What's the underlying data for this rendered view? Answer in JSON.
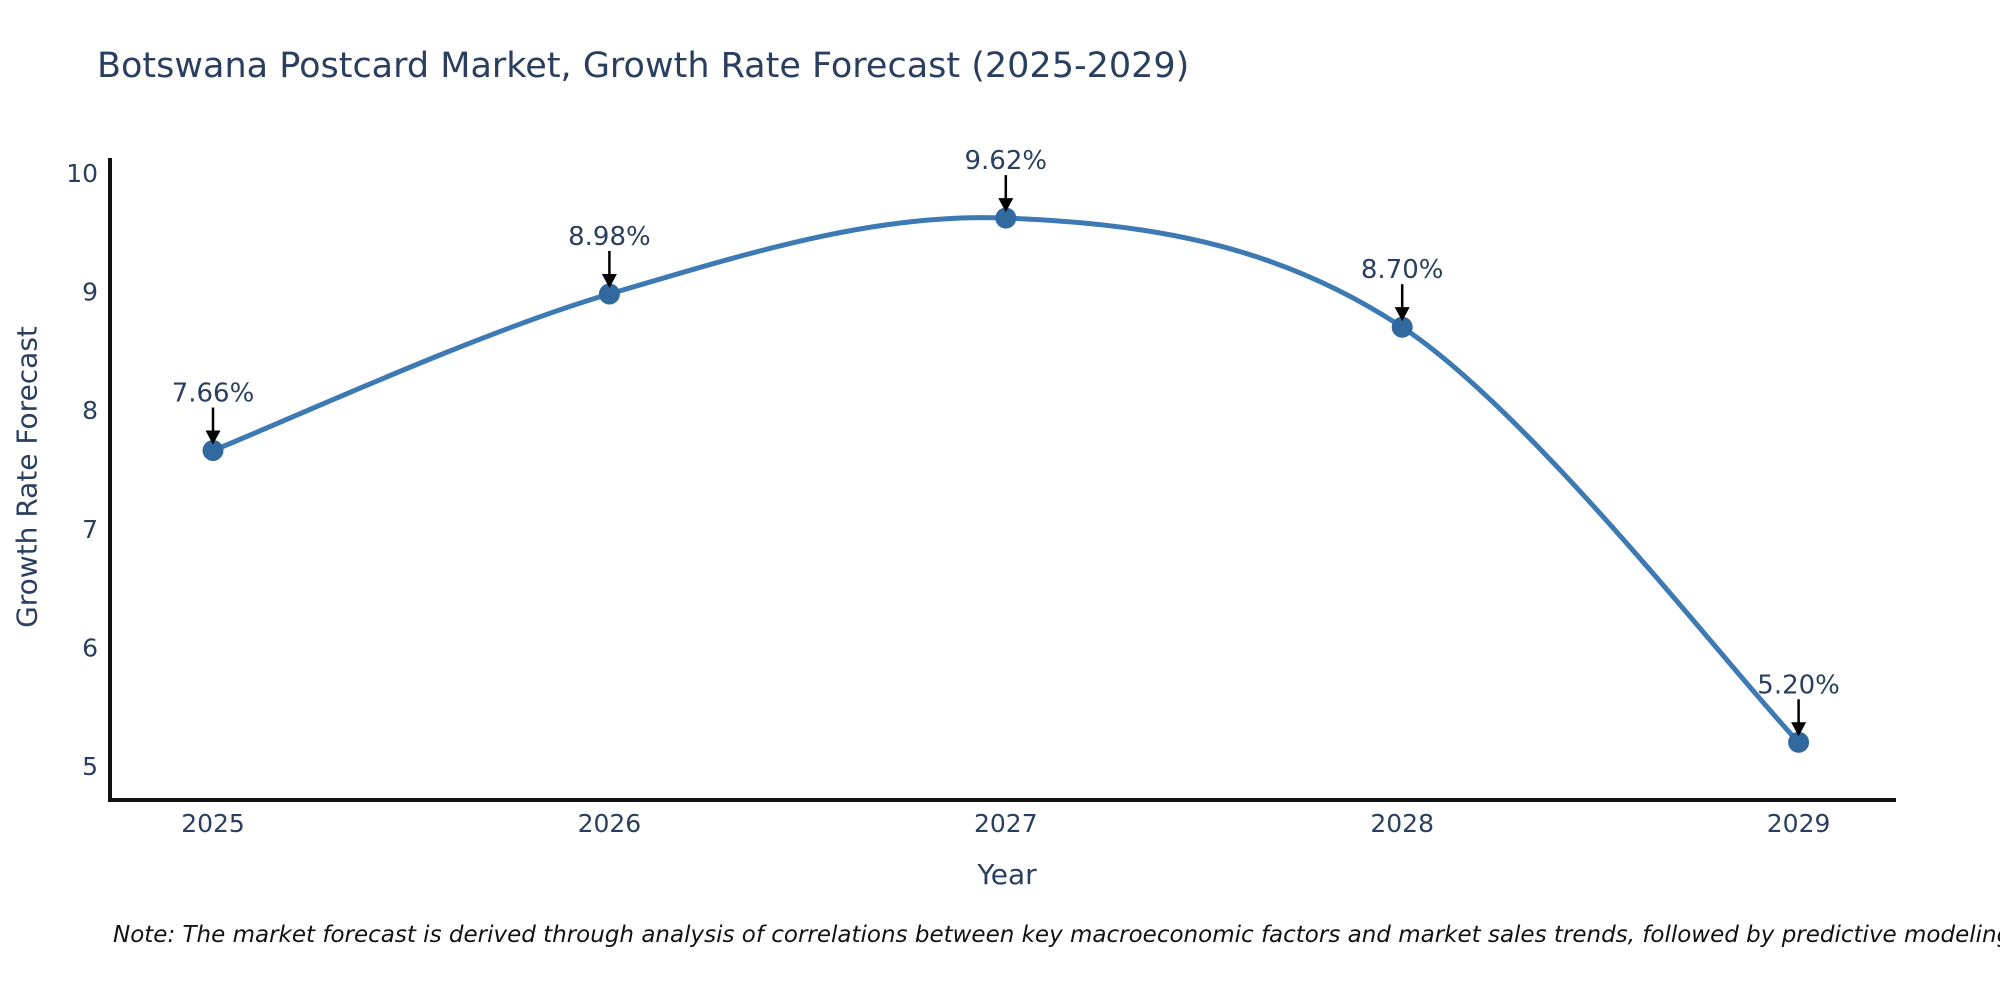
{
  "page": {
    "background": "#ffffff"
  },
  "chart_data": {
    "type": "line",
    "title": "Botswana Postcard Market, Growth Rate Forecast (2025-2029)",
    "xlabel": "Year",
    "ylabel": "Growth Rate Forecast",
    "note": "Note: The market forecast is derived through analysis of correlations between key macroeconomic factors and market sales trends, followed by predictive modeling to project future sales.",
    "x": [
      2025,
      2026,
      2027,
      2028,
      2029
    ],
    "values": [
      7.66,
      8.98,
      9.62,
      8.7,
      5.2
    ],
    "point_labels": [
      "7.66%",
      "8.98%",
      "9.62%",
      "8.70%",
      "5.20%"
    ],
    "ylim": [
      5,
      10
    ],
    "yticks": [
      5,
      6,
      7,
      8,
      9,
      10
    ],
    "line_shape": "spline",
    "grid": false,
    "legend": false,
    "colors": {
      "line": "#3d79b2",
      "marker": "#31689e",
      "axis": "#111111",
      "text": "#2a3f5f",
      "annotation_text": "#2a3f5f",
      "annotation_arrow": "#000000"
    }
  }
}
